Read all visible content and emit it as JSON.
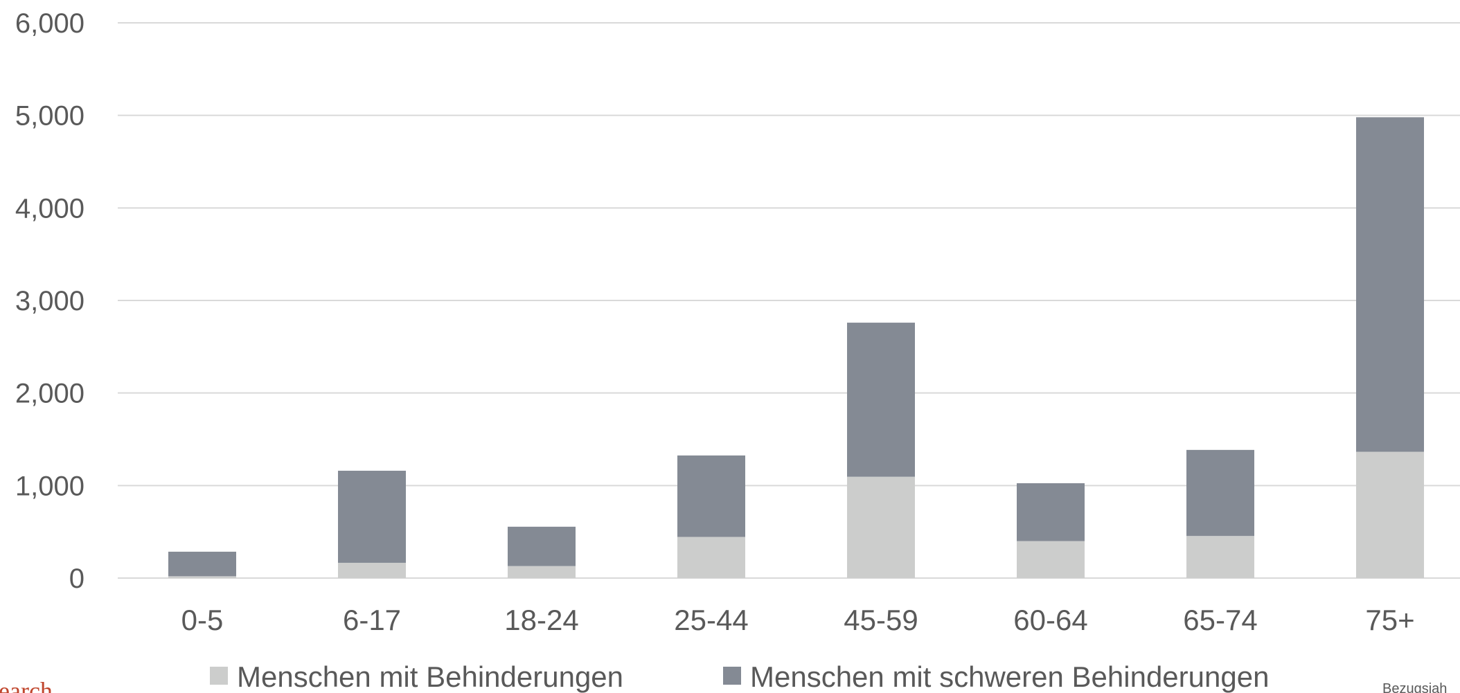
{
  "chart_data": {
    "type": "bar",
    "stacked": true,
    "categories": [
      "0-5",
      "6-17",
      "18-24",
      "25-44",
      "45-59",
      "60-64",
      "65-74",
      "75+"
    ],
    "series": [
      {
        "name": "Menschen mit Behinderungen",
        "color": "#cccdcc",
        "values": [
          20,
          165,
          130,
          445,
          1095,
          400,
          455,
          1365
        ]
      },
      {
        "name": "Menschen mit schweren Behinderungen",
        "color": "#848a94",
        "values": [
          265,
          995,
          425,
          880,
          1665,
          625,
          930,
          3615
        ]
      }
    ],
    "ylim": [
      0,
      6000
    ],
    "yticks": [
      0,
      1000,
      2000,
      3000,
      4000,
      5000,
      6000
    ],
    "ytick_labels": [
      "0",
      "1,000",
      "2,000",
      "3,000",
      "4,000",
      "5,000",
      "6,000"
    ],
    "grid": true,
    "legend_position": "bottom",
    "gridline_color": "#d9d9d9",
    "text_color": "#595959"
  },
  "edge_text": {
    "left": "earch",
    "right": "Bezugsjah"
  }
}
